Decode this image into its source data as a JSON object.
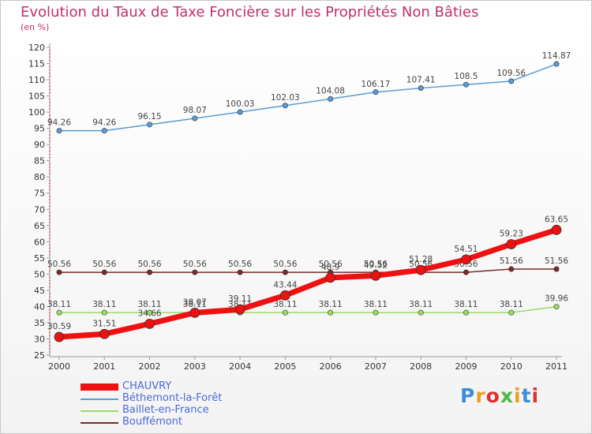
{
  "chart_data": {
    "type": "line",
    "title": "Evolution du Taux de Taxe Foncière sur les Propriétés Non Bâties",
    "subtitle": "(en %)",
    "x": [
      "2000",
      "2001",
      "2002",
      "2003",
      "2004",
      "2005",
      "2006",
      "2007",
      "2008",
      "2009",
      "2010",
      "2011"
    ],
    "ylim": [
      25,
      120
    ],
    "ytick_step": 5,
    "grid": false,
    "legend_position": "bottom-left",
    "series": [
      {
        "name": "Béthemont-la-Forêt",
        "color": "#5a9bd5",
        "values": [
          94.26,
          94.26,
          96.15,
          98.07,
          100.03,
          102.03,
          104.08,
          106.17,
          107.41,
          108.5,
          109.56,
          114.87
        ],
        "labels": [
          "94.26",
          "94.26",
          "96.15",
          "98.07",
          "100.03",
          "102.03",
          "104.08",
          "106.17",
          "107.41",
          "108.5",
          "109.56",
          "114.87"
        ]
      },
      {
        "name": "Bouffémont",
        "color": "#7b2a2a",
        "values": [
          50.56,
          50.56,
          50.56,
          50.56,
          50.56,
          50.56,
          50.56,
          50.56,
          50.56,
          50.56,
          51.56,
          51.56
        ],
        "labels": [
          "50.56",
          "50.56",
          "50.56",
          "50.56",
          "50.56",
          "50.56",
          "50.56",
          "50.56",
          "50.56",
          "50.56",
          "51.56",
          "51.56"
        ]
      },
      {
        "name": "Baillet-en-France",
        "color": "#99dd66",
        "values": [
          38.11,
          38.11,
          38.11,
          38.11,
          38.11,
          38.11,
          38.11,
          38.11,
          38.11,
          38.11,
          38.11,
          39.96
        ],
        "labels": [
          "38.11",
          "38.11",
          "38.11",
          "38.11",
          "38.11",
          "38.11",
          "38.11",
          "38.11",
          "38.11",
          "38.11",
          "38.11",
          "39.96"
        ]
      },
      {
        "name": "CHAUVRY",
        "color": "#ee1111",
        "values": [
          30.59,
          31.51,
          34.66,
          38.07,
          39.11,
          43.44,
          48.9,
          49.52,
          51.28,
          54.51,
          59.23,
          63.65
        ],
        "labels": [
          "30.59",
          "31.51",
          "34.66",
          "38.07",
          "39.11",
          "43.44",
          "48.9",
          "49.52",
          "51.28",
          "54.51",
          "59.23",
          "63.65"
        ]
      }
    ]
  },
  "legend": {
    "items": [
      {
        "name": "CHAUVRY",
        "color": "#ee1111"
      },
      {
        "name": "Béthemont-la-Forêt",
        "color": "#5a9bd5"
      },
      {
        "name": "Baillet-en-France",
        "color": "#99dd66"
      },
      {
        "name": "Bouffémont",
        "color": "#7b2a2a"
      }
    ]
  },
  "logo": {
    "text": "Proxiti",
    "colors": [
      "#3a8fd8",
      "#e8a020",
      "#e03030",
      "#50b848",
      "#e8a020",
      "#3a8fd8",
      "#e03030"
    ]
  }
}
